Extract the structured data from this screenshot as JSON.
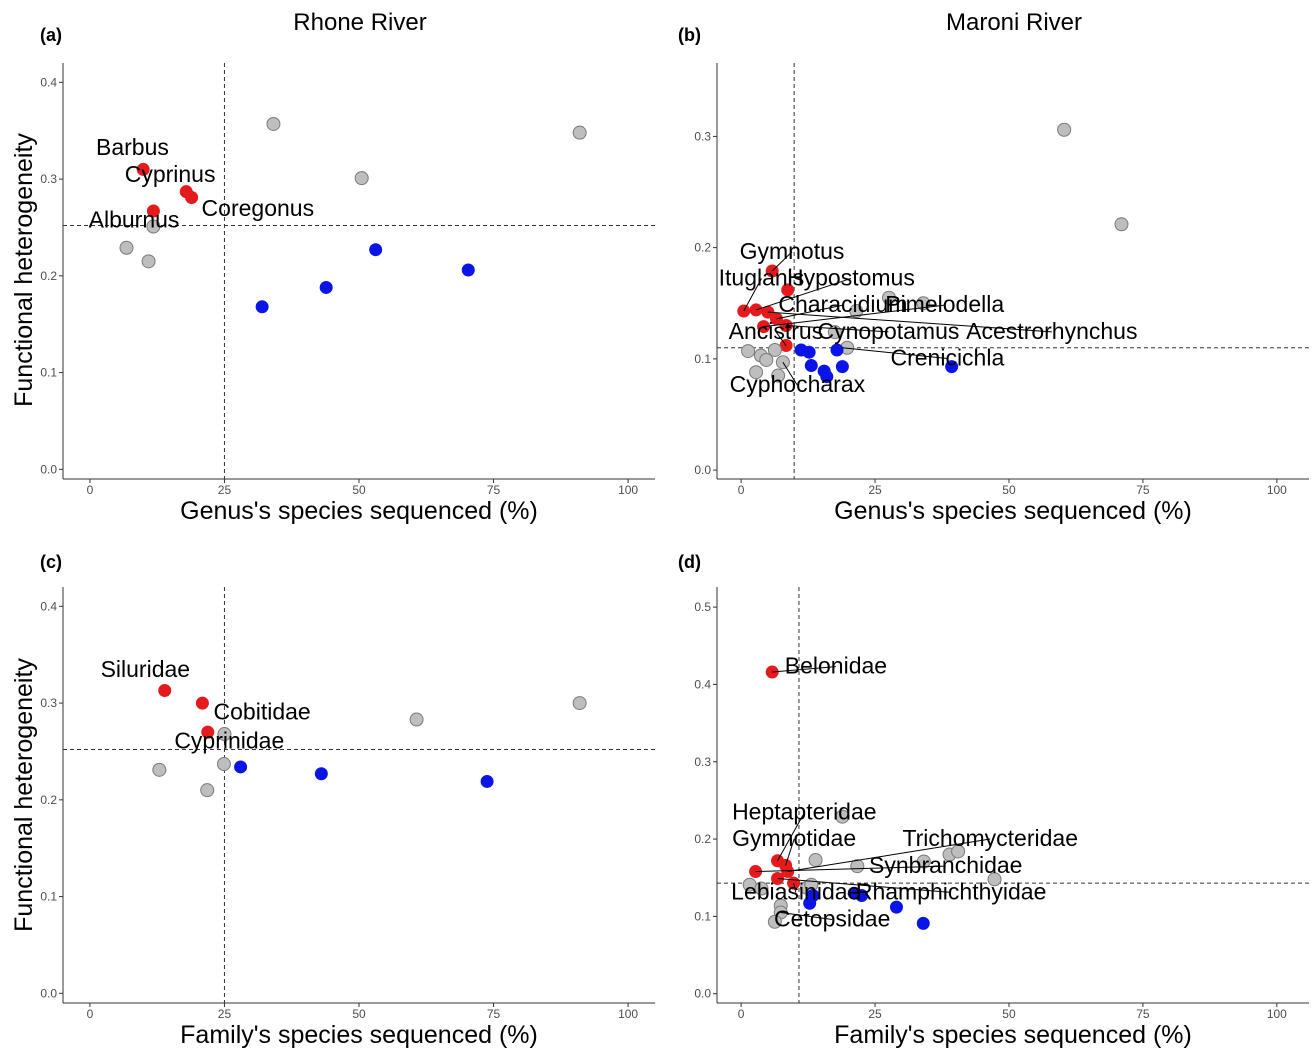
{
  "figure": {
    "column_titles": [
      "Rhone River",
      "Maroni River"
    ],
    "row_ylabels": [
      "Functional heterogeneity",
      "Functional heterogeneity"
    ],
    "colors": {
      "red": "#e41a1c",
      "blue": "#0a14e6",
      "grey": "#bebebe",
      "axis": "#333333"
    }
  },
  "chart_data": [
    {
      "panel": "(a)",
      "type": "scatter",
      "xlabel": "Genus's species sequenced (%)",
      "ylabel": "Functional heterogeneity",
      "xlim": [
        -5,
        105
      ],
      "ylim": [
        -0.01,
        0.42
      ],
      "xticks": [
        0,
        25,
        50,
        75,
        100
      ],
      "yticks": [
        0.0,
        0.1,
        0.2,
        0.3,
        0.4
      ],
      "ytick_labels": [
        "0.0",
        "0.1",
        "0.2",
        "0.3",
        "0.4"
      ],
      "vline": 25,
      "hline": 0.252,
      "points": [
        {
          "x": 9.9,
          "y": 0.31,
          "color": "red",
          "label": "Barbus"
        },
        {
          "x": 17.9,
          "y": 0.287,
          "color": "red",
          "label": "Cyprinus"
        },
        {
          "x": 18.9,
          "y": 0.281,
          "color": "red",
          "label": "Coregonus"
        },
        {
          "x": 11.8,
          "y": 0.267,
          "color": "red",
          "label": "Alburnus"
        },
        {
          "x": 11.8,
          "y": 0.251,
          "color": "grey"
        },
        {
          "x": 6.8,
          "y": 0.229,
          "color": "grey"
        },
        {
          "x": 10.9,
          "y": 0.215,
          "color": "grey"
        },
        {
          "x": 34.1,
          "y": 0.357,
          "color": "grey"
        },
        {
          "x": 50.5,
          "y": 0.301,
          "color": "grey"
        },
        {
          "x": 91.0,
          "y": 0.348,
          "color": "grey"
        },
        {
          "x": 32.0,
          "y": 0.168,
          "color": "blue"
        },
        {
          "x": 43.9,
          "y": 0.188,
          "color": "blue"
        },
        {
          "x": 53.1,
          "y": 0.227,
          "color": "blue"
        },
        {
          "x": 70.3,
          "y": 0.206,
          "color": "blue"
        }
      ],
      "annotations": [
        {
          "text": "Barbus",
          "x": 7.9,
          "y": 0.325,
          "line_to_point": false
        },
        {
          "text": "Cyprinus",
          "x": 14.9,
          "y": 0.297,
          "line_to_point": false
        },
        {
          "text": "Coregonus",
          "x": 31.2,
          "y": 0.262,
          "line_to_point": false
        },
        {
          "text": "Alburnus",
          "x": 8.2,
          "y": 0.25,
          "line_to_point": false
        }
      ]
    },
    {
      "panel": "(b)",
      "type": "scatter",
      "xlabel": "Genus's species sequenced (%)",
      "ylabel": "",
      "xlim": [
        -4.5,
        106
      ],
      "ylim": [
        -0.008,
        0.366
      ],
      "xticks": [
        0,
        25,
        50,
        75,
        100
      ],
      "yticks": [
        0.0,
        0.1,
        0.2,
        0.3
      ],
      "ytick_labels": [
        "0.0",
        "0.1",
        "0.2",
        "0.3"
      ],
      "vline": 9.9,
      "hline": 0.11,
      "points": [
        {
          "x": 5.8,
          "y": 0.179,
          "color": "red"
        },
        {
          "x": 8.7,
          "y": 0.162,
          "color": "red"
        },
        {
          "x": 0.5,
          "y": 0.143,
          "color": "red"
        },
        {
          "x": 2.8,
          "y": 0.144,
          "color": "red"
        },
        {
          "x": 5.0,
          "y": 0.142,
          "color": "red"
        },
        {
          "x": 6.6,
          "y": 0.136,
          "color": "red"
        },
        {
          "x": 4.2,
          "y": 0.129,
          "color": "red"
        },
        {
          "x": 8.4,
          "y": 0.13,
          "color": "red"
        },
        {
          "x": 8.4,
          "y": 0.112,
          "color": "red"
        },
        {
          "x": 60.3,
          "y": 0.306,
          "color": "grey"
        },
        {
          "x": 71.0,
          "y": 0.221,
          "color": "grey"
        },
        {
          "x": 27.6,
          "y": 0.155,
          "color": "grey"
        },
        {
          "x": 34.0,
          "y": 0.15,
          "color": "grey"
        },
        {
          "x": 21.5,
          "y": 0.143,
          "color": "grey"
        },
        {
          "x": 17.5,
          "y": 0.124,
          "color": "grey"
        },
        {
          "x": 19.8,
          "y": 0.11,
          "color": "grey"
        },
        {
          "x": 1.3,
          "y": 0.107,
          "color": "grey"
        },
        {
          "x": 3.7,
          "y": 0.103,
          "color": "grey"
        },
        {
          "x": 4.7,
          "y": 0.099,
          "color": "grey"
        },
        {
          "x": 6.3,
          "y": 0.108,
          "color": "grey"
        },
        {
          "x": 7.8,
          "y": 0.097,
          "color": "grey"
        },
        {
          "x": 2.8,
          "y": 0.088,
          "color": "grey"
        },
        {
          "x": 6.9,
          "y": 0.085,
          "color": "grey"
        },
        {
          "x": 11.2,
          "y": 0.108,
          "color": "blue"
        },
        {
          "x": 12.7,
          "y": 0.106,
          "color": "blue"
        },
        {
          "x": 17.9,
          "y": 0.108,
          "color": "blue"
        },
        {
          "x": 13.1,
          "y": 0.094,
          "color": "blue"
        },
        {
          "x": 18.9,
          "y": 0.093,
          "color": "blue"
        },
        {
          "x": 15.5,
          "y": 0.089,
          "color": "blue"
        },
        {
          "x": 16.0,
          "y": 0.084,
          "color": "blue"
        },
        {
          "x": 39.3,
          "y": 0.093,
          "color": "blue"
        }
      ],
      "annotations": [
        {
          "text": "Gymnotus",
          "x": 9.5,
          "y": 0.19,
          "px": 5.8,
          "py": 0.179
        },
        {
          "text": "Ituglanis",
          "x": 3.8,
          "y": 0.166,
          "px": 0.5,
          "py": 0.143
        },
        {
          "text": "Hypostomus",
          "x": 20.5,
          "y": 0.166,
          "px": 2.8,
          "py": 0.144
        },
        {
          "text": "Characidium",
          "x": 19.0,
          "y": 0.142,
          "px": 6.6,
          "py": 0.136
        },
        {
          "text": "Pimelodella",
          "x": 38.0,
          "y": 0.142,
          "px": 4.2,
          "py": 0.129
        },
        {
          "text": "Ancistrus",
          "x": 6.5,
          "y": 0.118,
          "px": 8.4,
          "py": 0.112
        },
        {
          "text": "Cynopotamus",
          "x": 27.5,
          "y": 0.118,
          "px": 8.4,
          "py": 0.13
        },
        {
          "text": "Acestrorhynchus",
          "x": 58.0,
          "y": 0.118,
          "px": 5.0,
          "py": 0.142
        },
        {
          "text": "Crenicichla",
          "x": 38.5,
          "y": 0.094,
          "px": 18.9,
          "py": 0.11
        },
        {
          "text": "Cyphocharax",
          "x": 10.5,
          "y": 0.07,
          "px": 7.8,
          "py": 0.097
        }
      ]
    },
    {
      "panel": "(c)",
      "type": "scatter",
      "xlabel": "Family's species sequenced (%)",
      "ylabel": "Functional heterogeneity",
      "xlim": [
        -5,
        105
      ],
      "ylim": [
        -0.01,
        0.42
      ],
      "xticks": [
        0,
        25,
        50,
        75,
        100
      ],
      "yticks": [
        0.0,
        0.1,
        0.2,
        0.3,
        0.4
      ],
      "ytick_labels": [
        "0.0",
        "0.1",
        "0.2",
        "0.3",
        "0.4"
      ],
      "vline": 25,
      "hline": 0.252,
      "points": [
        {
          "x": 13.9,
          "y": 0.313,
          "color": "red",
          "label": "Siluridae"
        },
        {
          "x": 20.9,
          "y": 0.3,
          "color": "red"
        },
        {
          "x": 21.9,
          "y": 0.27,
          "color": "red",
          "label": "Cobitidae"
        },
        {
          "x": 25.0,
          "y": 0.268,
          "color": "grey"
        },
        {
          "x": 24.9,
          "y": 0.237,
          "color": "grey"
        },
        {
          "x": 12.9,
          "y": 0.231,
          "color": "grey"
        },
        {
          "x": 21.8,
          "y": 0.21,
          "color": "grey"
        },
        {
          "x": 60.7,
          "y": 0.283,
          "color": "grey"
        },
        {
          "x": 91.0,
          "y": 0.3,
          "color": "grey"
        },
        {
          "x": 28.0,
          "y": 0.234,
          "color": "blue"
        },
        {
          "x": 43.0,
          "y": 0.227,
          "color": "blue"
        },
        {
          "x": 73.8,
          "y": 0.219,
          "color": "blue"
        }
      ],
      "annotations": [
        {
          "text": "Siluridae",
          "x": 10.3,
          "y": 0.327,
          "line_to_point": false
        },
        {
          "text": "Cobitidae",
          "x": 32.0,
          "y": 0.283,
          "line_to_point": false
        },
        {
          "text": "Cyprinidae",
          "x": 25.9,
          "y": 0.253,
          "line_to_point": false
        }
      ]
    },
    {
      "panel": "(d)",
      "type": "scatter",
      "xlabel": "Family's species sequenced (%)",
      "ylabel": "",
      "xlim": [
        -4.5,
        106
      ],
      "ylim": [
        -0.012,
        0.526
      ],
      "xticks": [
        0,
        25,
        50,
        75,
        100
      ],
      "yticks": [
        0.0,
        0.1,
        0.2,
        0.3,
        0.4,
        0.5
      ],
      "ytick_labels": [
        "0.0",
        "0.1",
        "0.2",
        "0.3",
        "0.4",
        "0.5"
      ],
      "vline": 10.8,
      "hline": 0.143,
      "points": [
        {
          "x": 5.8,
          "y": 0.416,
          "color": "red"
        },
        {
          "x": 6.8,
          "y": 0.172,
          "color": "red"
        },
        {
          "x": 8.3,
          "y": 0.166,
          "color": "red"
        },
        {
          "x": 2.7,
          "y": 0.158,
          "color": "red"
        },
        {
          "x": 8.7,
          "y": 0.158,
          "color": "red"
        },
        {
          "x": 6.8,
          "y": 0.149,
          "color": "red"
        },
        {
          "x": 9.8,
          "y": 0.143,
          "color": "red"
        },
        {
          "x": 18.9,
          "y": 0.229,
          "color": "grey"
        },
        {
          "x": 13.9,
          "y": 0.173,
          "color": "grey"
        },
        {
          "x": 21.7,
          "y": 0.165,
          "color": "grey"
        },
        {
          "x": 34.1,
          "y": 0.171,
          "color": "grey"
        },
        {
          "x": 38.9,
          "y": 0.18,
          "color": "grey"
        },
        {
          "x": 40.5,
          "y": 0.184,
          "color": "grey"
        },
        {
          "x": 47.3,
          "y": 0.148,
          "color": "grey"
        },
        {
          "x": 1.6,
          "y": 0.141,
          "color": "grey"
        },
        {
          "x": 3.8,
          "y": 0.136,
          "color": "grey"
        },
        {
          "x": 12.3,
          "y": 0.137,
          "color": "grey"
        },
        {
          "x": 13.1,
          "y": 0.141,
          "color": "grey"
        },
        {
          "x": 7.4,
          "y": 0.114,
          "color": "grey"
        },
        {
          "x": 7.4,
          "y": 0.105,
          "color": "grey"
        },
        {
          "x": 6.3,
          "y": 0.093,
          "color": "grey"
        },
        {
          "x": 13.4,
          "y": 0.127,
          "color": "blue"
        },
        {
          "x": 21.1,
          "y": 0.13,
          "color": "blue"
        },
        {
          "x": 22.5,
          "y": 0.127,
          "color": "blue"
        },
        {
          "x": 12.8,
          "y": 0.117,
          "color": "blue"
        },
        {
          "x": 29.0,
          "y": 0.112,
          "color": "blue"
        },
        {
          "x": 34.0,
          "y": 0.091,
          "color": "blue"
        }
      ],
      "annotations": [
        {
          "text": "Belonidae",
          "x": 17.7,
          "y": 0.414,
          "px": 5.8,
          "py": 0.416
        },
        {
          "text": "Heptapteridae",
          "x": 11.8,
          "y": 0.225,
          "px": 6.8,
          "py": 0.172
        },
        {
          "text": "Gymnotidae",
          "x": 9.9,
          "y": 0.191,
          "px": 8.3,
          "py": 0.166
        },
        {
          "text": "Trichomycteridae",
          "x": 46.5,
          "y": 0.191,
          "px": 8.7,
          "py": 0.158
        },
        {
          "text": "Synbranchidae",
          "x": 38.2,
          "y": 0.156,
          "px": 2.7,
          "py": 0.158
        },
        {
          "text": "Lebiasinidae",
          "x": 10.2,
          "y": 0.122,
          "px": 9.8,
          "py": 0.143
        },
        {
          "text": "Rhamphichthyidae",
          "x": 39.2,
          "y": 0.122,
          "px": 6.8,
          "py": 0.149
        },
        {
          "text": "Cetopsidae",
          "x": 17.0,
          "y": 0.087,
          "px": 7.4,
          "py": 0.105
        }
      ]
    }
  ]
}
